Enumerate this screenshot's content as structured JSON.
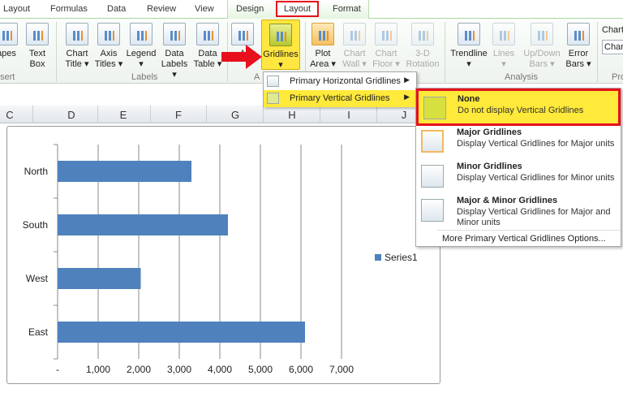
{
  "tabs": [
    "Layout",
    "Formulas",
    "Data",
    "Review",
    "View",
    "Design",
    "Layout",
    "Format"
  ],
  "selected_tab": "Layout",
  "ribbon": {
    "buttons": {
      "shapes": "apes",
      "text_box": [
        "Text",
        "Box"
      ],
      "chart_title": [
        "Chart",
        "Title ▾"
      ],
      "axis_titles": [
        "Axis",
        "Titles ▾"
      ],
      "legend": [
        "Legend",
        "▾"
      ],
      "data_labels": [
        "Data",
        "Labels ▾"
      ],
      "data_table": [
        "Data",
        "Table ▾"
      ],
      "axes": "A",
      "gridlines": [
        "Gridlines",
        "▾"
      ],
      "plot_area": [
        "Plot",
        "Area ▾"
      ],
      "chart_wall": [
        "Chart",
        "Wall ▾"
      ],
      "chart_floor": [
        "Chart",
        "Floor ▾"
      ],
      "rotation": [
        "3-D",
        "Rotation"
      ],
      "trendline": [
        "Trendline",
        "▾"
      ],
      "lines": [
        "Lines",
        "▾"
      ],
      "updown": [
        "Up/Down",
        "Bars ▾"
      ],
      "error_bars": [
        "Error",
        "Bars ▾"
      ],
      "chart_name_label": "Chart",
      "chart_name_value": "Char"
    },
    "groups": {
      "insert": "sert",
      "labels": "Labels",
      "axes": "A",
      "analysis": "Analysis",
      "properties": "Pro"
    }
  },
  "columns": [
    "C",
    "D",
    "E",
    "F",
    "G",
    "H",
    "I",
    "J"
  ],
  "menu": {
    "items": [
      {
        "label": "Primary Horizontal Gridlines"
      },
      {
        "label": "Primary Vertical Gridlines"
      }
    ]
  },
  "submenu": {
    "items": [
      {
        "title": "None",
        "desc": "Do not display Vertical Gridlines"
      },
      {
        "title": "Major Gridlines",
        "desc": "Display Vertical Gridlines for Major units"
      },
      {
        "title": "Minor Gridlines",
        "desc": "Display Vertical Gridlines for Minor units"
      },
      {
        "title": "Major & Minor Gridlines",
        "desc": "Display Vertical Gridlines for Major and",
        "desc2": "Minor units"
      }
    ],
    "more": "More Primary Vertical Gridlines Options..."
  },
  "chart_data": {
    "type": "bar",
    "orientation": "horizontal",
    "categories": [
      "North",
      "South",
      "West",
      "East"
    ],
    "series": [
      {
        "name": "Series1",
        "values": [
          3300,
          4200,
          2050,
          6100
        ]
      }
    ],
    "xlim": [
      0,
      7000
    ],
    "xticks": [
      "-",
      "1,000",
      "2,000",
      "3,000",
      "4,000",
      "5,000",
      "6,000",
      "7,000"
    ],
    "grid": "vertical major",
    "legend": "right",
    "bar_color": "#4f81bd"
  }
}
